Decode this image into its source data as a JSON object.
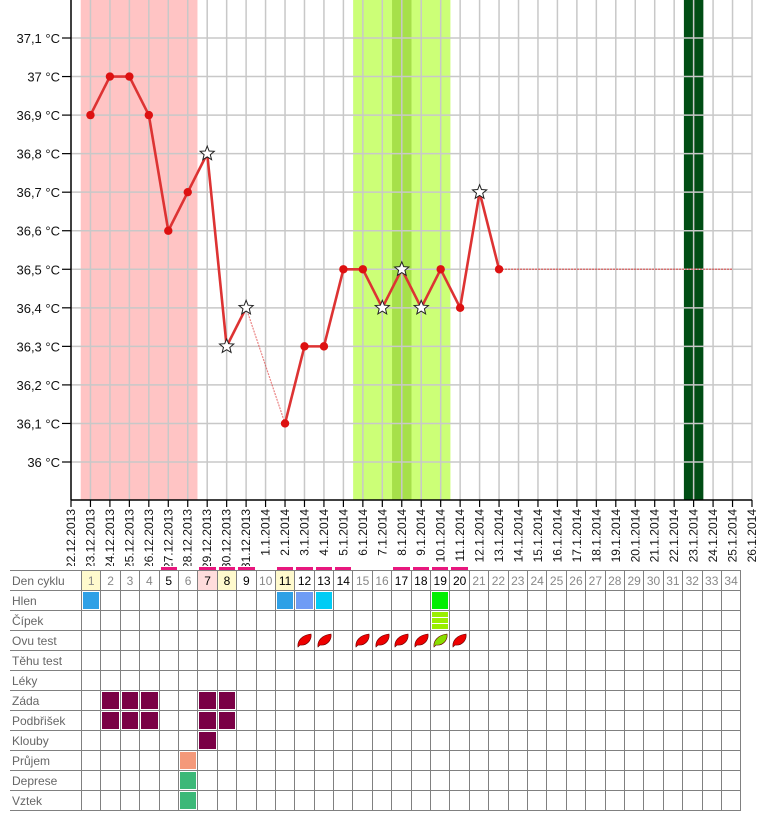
{
  "chart_data": {
    "type": "line",
    "x_tick_labels": [
      "22.12.2013",
      "23.12.2013",
      "24.12.2013",
      "25.12.2013",
      "26.12.2013",
      "27.12.2013",
      "28.12.2013",
      "29.12.2013",
      "30.12.2013",
      "31.12.2013",
      "1.1.2014",
      "2.1.2014",
      "3.1.2014",
      "4.1.2014",
      "5.1.2014",
      "6.1.2014",
      "7.1.2014",
      "8.1.2014",
      "9.1.2014",
      "10.1.2014",
      "11.1.2014",
      "12.1.2014",
      "13.1.2014",
      "14.1.2014",
      "15.1.2014",
      "16.1.2014",
      "17.1.2014",
      "18.1.2014",
      "19.1.2014",
      "20.1.2014",
      "21.1.2014",
      "22.1.2014",
      "23.1.2014",
      "24.1.2014",
      "25.1.2014",
      "26.1.2014"
    ],
    "y_tick_values": [
      36,
      36.1,
      36.2,
      36.3,
      36.4,
      36.5,
      36.6,
      36.7,
      36.8,
      36.9,
      37,
      37.1
    ],
    "y_tick_labels": [
      "36 °C",
      "36,1 °C",
      "36,2 °C",
      "36,3 °C",
      "36,4 °C",
      "36,5 °C",
      "36,6 °C",
      "36,7 °C",
      "36,8 °C",
      "36,9 °C",
      "37 °C",
      "37,1 °C"
    ],
    "ylim": [
      35.9,
      37.2
    ],
    "grid": true,
    "line_color": "#dd3333",
    "points": [
      {
        "date": "23.12.2013",
        "value": 36.9,
        "marker": "dot"
      },
      {
        "date": "24.12.2013",
        "value": 37.0,
        "marker": "dot"
      },
      {
        "date": "25.12.2013",
        "value": 37.0,
        "marker": "dot"
      },
      {
        "date": "26.12.2013",
        "value": 36.9,
        "marker": "dot"
      },
      {
        "date": "27.12.2013",
        "value": 36.6,
        "marker": "dot"
      },
      {
        "date": "28.12.2013",
        "value": 36.7,
        "marker": "dot"
      },
      {
        "date": "29.12.2013",
        "value": 36.8,
        "marker": "star"
      },
      {
        "date": "30.12.2013",
        "value": 36.3,
        "marker": "star"
      },
      {
        "date": "31.12.2013",
        "value": 36.4,
        "marker": "star"
      },
      {
        "date": "2.1.2014",
        "value": 36.1,
        "marker": "dot"
      },
      {
        "date": "3.1.2014",
        "value": 36.3,
        "marker": "dot"
      },
      {
        "date": "4.1.2014",
        "value": 36.3,
        "marker": "dot"
      },
      {
        "date": "5.1.2014",
        "value": 36.5,
        "marker": "dot"
      },
      {
        "date": "6.1.2014",
        "value": 36.5,
        "marker": "dot"
      },
      {
        "date": "7.1.2014",
        "value": 36.4,
        "marker": "star"
      },
      {
        "date": "8.1.2014",
        "value": 36.5,
        "marker": "star"
      },
      {
        "date": "9.1.2014",
        "value": 36.4,
        "marker": "star"
      },
      {
        "date": "10.1.2014",
        "value": 36.5,
        "marker": "dot"
      },
      {
        "date": "11.1.2014",
        "value": 36.4,
        "marker": "dot"
      },
      {
        "date": "12.1.2014",
        "value": 36.7,
        "marker": "star"
      },
      {
        "date": "13.1.2014",
        "value": 36.5,
        "marker": "dot"
      }
    ],
    "projection": {
      "from": "13.1.2014",
      "to": "25.1.2014",
      "value": 36.5
    },
    "bands": [
      {
        "from": "23.12.2013",
        "to": "28.12.2013",
        "color": "#ffc4c4"
      },
      {
        "from": "6.1.2014",
        "to": "10.1.2014",
        "color": "#ccff77"
      },
      {
        "from": "8.1.2014",
        "to": "8.1.2014",
        "color": "#a6e04a"
      },
      {
        "from": "23.1.2014",
        "to": "23.1.2014",
        "color": "#004d14"
      }
    ]
  },
  "table": {
    "days": [
      {
        "n": "1",
        "bg": "#fffacd"
      },
      {
        "n": "2"
      },
      {
        "n": "3"
      },
      {
        "n": "4"
      },
      {
        "n": "5",
        "bar": true
      },
      {
        "n": "6"
      },
      {
        "n": "7",
        "bar": true,
        "bg": "#ffdcdc"
      },
      {
        "n": "8",
        "bar": true,
        "bg": "#fffacd"
      },
      {
        "n": "9",
        "bar": true
      },
      {
        "n": "10"
      },
      {
        "n": "11",
        "bar": true,
        "bg": "#fffacd"
      },
      {
        "n": "12",
        "bar": true
      },
      {
        "n": "13",
        "bar": true
      },
      {
        "n": "14",
        "bar": true
      },
      {
        "n": "15"
      },
      {
        "n": "16"
      },
      {
        "n": "17",
        "bar": true
      },
      {
        "n": "18",
        "bar": true
      },
      {
        "n": "19",
        "bar": true
      },
      {
        "n": "20",
        "bar": true
      },
      {
        "n": "21"
      },
      {
        "n": "22"
      },
      {
        "n": "23"
      },
      {
        "n": "24"
      },
      {
        "n": "25"
      },
      {
        "n": "26"
      },
      {
        "n": "27"
      },
      {
        "n": "28"
      },
      {
        "n": "29"
      },
      {
        "n": "30"
      },
      {
        "n": "31"
      },
      {
        "n": "32"
      },
      {
        "n": "33"
      },
      {
        "n": "34"
      }
    ],
    "header_label": "Den cyklu",
    "rows": [
      {
        "label": "Hlen",
        "cells": {
          "1": {
            "type": "block",
            "color": "#2ea0e6"
          },
          "11": {
            "type": "block",
            "color": "#2ea0e6"
          },
          "12": {
            "type": "block",
            "color": "#6f9cf5"
          },
          "13": {
            "type": "block",
            "color": "#00ccf5"
          },
          "19": {
            "type": "block",
            "color": "#00ee00"
          }
        }
      },
      {
        "label": "Čípek",
        "cells": {
          "19": {
            "type": "stripe",
            "color": "#99ee00"
          }
        }
      },
      {
        "label": "Ovu test",
        "cells": {
          "12": {
            "type": "drop",
            "color": "#ee0000"
          },
          "13": {
            "type": "drop",
            "color": "#ee0000"
          },
          "15": {
            "type": "drop",
            "color": "#ee0000"
          },
          "16": {
            "type": "drop",
            "color": "#ee0000"
          },
          "17": {
            "type": "drop",
            "color": "#ee0000"
          },
          "18": {
            "type": "drop",
            "color": "#ee0000"
          },
          "19": {
            "type": "drop",
            "color": "#88dd00"
          },
          "20": {
            "type": "drop",
            "color": "#ee0000"
          }
        }
      },
      {
        "label": "Těhu test",
        "cells": {}
      },
      {
        "label": "Léky",
        "cells": {}
      },
      {
        "label": "Záda",
        "cells": {
          "2": {
            "type": "block",
            "color": "#7a0045"
          },
          "3": {
            "type": "block",
            "color": "#7a0045"
          },
          "4": {
            "type": "block",
            "color": "#7a0045"
          },
          "7": {
            "type": "block",
            "color": "#7a0045"
          },
          "8": {
            "type": "block",
            "color": "#7a0045"
          }
        }
      },
      {
        "label": "Podbřišek",
        "cells": {
          "2": {
            "type": "block",
            "color": "#7a0045"
          },
          "3": {
            "type": "block",
            "color": "#7a0045"
          },
          "4": {
            "type": "block",
            "color": "#7a0045"
          },
          "7": {
            "type": "block",
            "color": "#7a0045"
          },
          "8": {
            "type": "block",
            "color": "#7a0045"
          }
        }
      },
      {
        "label": "Klouby",
        "cells": {
          "7": {
            "type": "block",
            "color": "#7a0045"
          }
        }
      },
      {
        "label": "Průjem",
        "cells": {
          "6": {
            "type": "block",
            "color": "#f4997a"
          }
        }
      },
      {
        "label": "Deprese",
        "cells": {
          "6": {
            "type": "block",
            "color": "#3cb878"
          }
        }
      },
      {
        "label": "Vztek",
        "cells": {
          "6": {
            "type": "block",
            "color": "#3cb878"
          }
        }
      }
    ],
    "marker_bar_color": "#e8177e"
  }
}
